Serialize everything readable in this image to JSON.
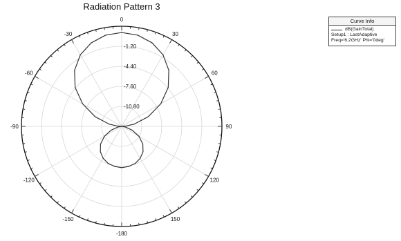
{
  "chart_data": {
    "type": "polar",
    "title": "Radiation Pattern 3",
    "radial_ticks": [
      "-1.20",
      "-4.40",
      "-7.60",
      "-10.80"
    ],
    "radial_tick_values": [
      -1.2,
      -4.4,
      -7.6,
      -10.8
    ],
    "rlim": [
      -14.0,
      2.0
    ],
    "angular_ticks": [
      0,
      30,
      60,
      90,
      120,
      150,
      -180,
      -150,
      -120,
      -90,
      -60,
      -30
    ],
    "angular_tick_labels": [
      "0",
      "30",
      "60",
      "90",
      "120",
      "150",
      "-180",
      "-150",
      "-120",
      "-90",
      "-60",
      "-30"
    ],
    "grid": true,
    "legend_placement": "top-right",
    "series": [
      {
        "name": "dB(GainTotal)",
        "color": "#333333",
        "theta_deg": [
          0,
          10,
          20,
          30,
          40,
          50,
          60,
          70,
          80,
          85,
          90,
          95,
          100,
          110,
          120,
          130,
          140,
          150,
          160,
          170,
          180,
          -170,
          -160,
          -150,
          -140,
          -130,
          -120,
          -110,
          -100,
          -95,
          -90,
          -85,
          -80,
          -70,
          -60,
          -50,
          -40,
          -30,
          -20,
          -10
        ],
        "gain_db": [
          1.0,
          0.8,
          0.2,
          -0.8,
          -2.3,
          -4.3,
          -6.8,
          -9.5,
          -12.0,
          -13.3,
          -14.0,
          -13.8,
          -13.4,
          -12.2,
          -10.8,
          -9.6,
          -8.7,
          -8.1,
          -7.7,
          -7.5,
          -7.4,
          -7.5,
          -7.7,
          -8.1,
          -8.7,
          -9.6,
          -10.8,
          -12.2,
          -13.4,
          -13.8,
          -14.0,
          -13.3,
          -12.0,
          -9.5,
          -6.8,
          -4.3,
          -2.3,
          -0.8,
          0.2,
          0.8
        ]
      }
    ]
  },
  "legend": {
    "title": "Curve Info",
    "entry_label": "dB(GainTotal)",
    "line2": "Setup1 : LastAdaptive",
    "line3": "Freq='6.2GHz' Phi='0deg'"
  }
}
